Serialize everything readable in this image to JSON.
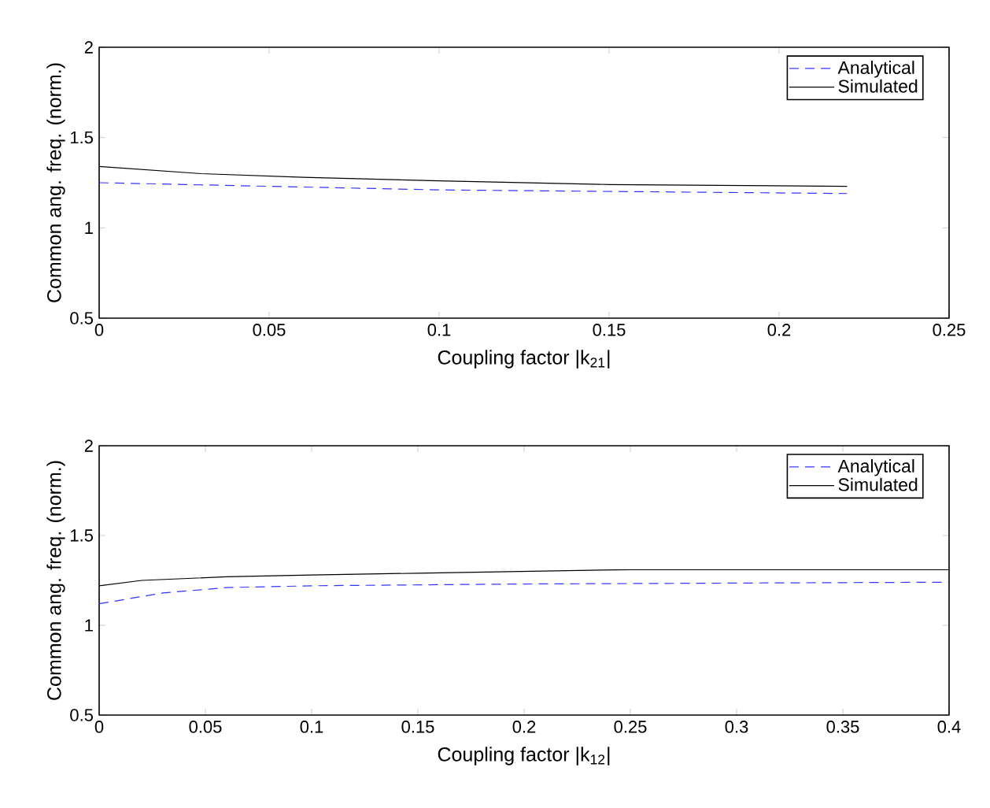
{
  "chart_data": [
    {
      "type": "line",
      "xlabel": "Coupling factor |k$_{21}$|",
      "ylabel": "Common ang. freq. (norm.)",
      "xlim": [
        0,
        0.25
      ],
      "ylim": [
        0.5,
        2
      ],
      "xticks": [
        0,
        0.05,
        0.1,
        0.15,
        0.2,
        0.25
      ],
      "yticks": [
        0.5,
        1,
        1.5,
        2
      ],
      "legend": "top right",
      "series": [
        {
          "name": "Analytical",
          "color": "#3333ff",
          "line_style": "dashed",
          "x": [
            0,
            0.1,
            0.22
          ],
          "values": [
            1.25,
            1.21,
            1.19
          ]
        },
        {
          "name": "Simulated",
          "color": "#000000",
          "line_style": "solid",
          "x": [
            0,
            0.03,
            0.06,
            0.1,
            0.15,
            0.22
          ],
          "values": [
            1.34,
            1.3,
            1.28,
            1.26,
            1.24,
            1.23
          ]
        }
      ]
    },
    {
      "type": "line",
      "xlabel": "Coupling factor |k$_{12}$|",
      "ylabel": "Common ang. freq. (norm.)",
      "xlim": [
        0,
        0.4
      ],
      "ylim": [
        0.5,
        2
      ],
      "xticks": [
        0,
        0.05,
        0.1,
        0.15,
        0.2,
        0.25,
        0.3,
        0.35,
        0.4
      ],
      "yticks": [
        0.5,
        1,
        1.5,
        2
      ],
      "legend": "top right",
      "series": [
        {
          "name": "Analytical",
          "color": "#3333ff",
          "line_style": "dashed",
          "x": [
            0,
            0.01,
            0.03,
            0.06,
            0.1,
            0.2,
            0.4
          ],
          "values": [
            1.12,
            1.14,
            1.18,
            1.21,
            1.22,
            1.23,
            1.24
          ]
        },
        {
          "name": "Simulated",
          "color": "#000000",
          "line_style": "solid",
          "x": [
            0,
            0.02,
            0.06,
            0.1,
            0.15,
            0.25,
            0.4
          ],
          "values": [
            1.22,
            1.25,
            1.27,
            1.28,
            1.29,
            1.31,
            1.31
          ]
        }
      ]
    }
  ]
}
